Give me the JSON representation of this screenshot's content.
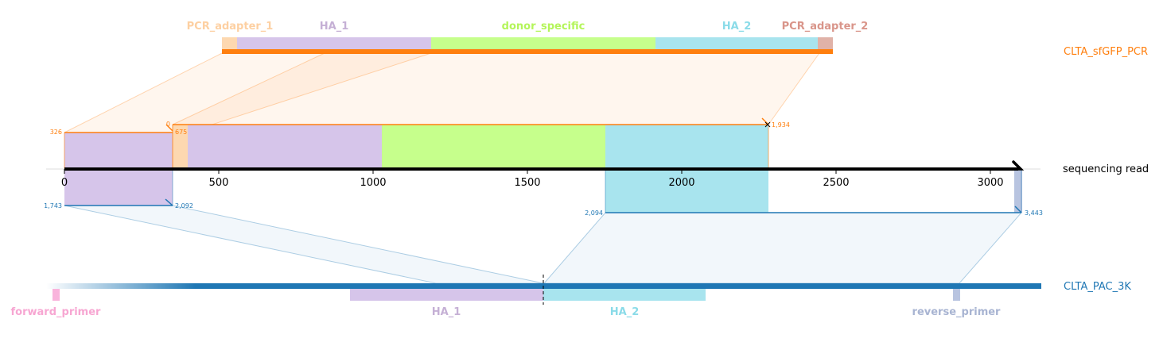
{
  "colors": {
    "pcr": "#ff7f0e",
    "pac": "#1f77b4",
    "pcr_adapter_1": "#fdd8b0",
    "ha_1": "#d6c5ea",
    "donor_specific": "#c6ff8c",
    "ha_2": "#a8e4ee",
    "pcr_adapter_2": "#e0b2a8",
    "forward_primer": "#f9b4dc",
    "reverse_primer": "#b8c4e0",
    "label_pcr_adapter_1": "#fdd0a2",
    "label_ha_1": "#c5b0d5",
    "label_donor_specific": "#b4f55a",
    "label_ha_2": "#8adbe8",
    "label_pcr_adapter_2": "#d9958a",
    "label_forward_primer": "#f7a6d2",
    "label_reverse_primer": "#a8b4d2"
  },
  "top_track": {
    "name": "CLTA_sfGFP_PCR",
    "features": [
      {
        "key": "pcr_adapter_1",
        "label": "PCR_adapter_1"
      },
      {
        "key": "ha_1",
        "label": "HA_1"
      },
      {
        "key": "donor_specific",
        "label": "donor_specific"
      },
      {
        "key": "ha_2",
        "label": "HA_2"
      },
      {
        "key": "pcr_adapter_2",
        "label": "PCR_adapter_2"
      }
    ]
  },
  "read_track": {
    "name": "sequencing read",
    "ticks": [
      "0",
      "500",
      "1000",
      "1500",
      "2000",
      "2500",
      "3000"
    ],
    "upper_alignment": {
      "read_start": "326",
      "target_start": "0",
      "read_end": "1,934",
      "target_inner": "675"
    },
    "lower_alignment": {
      "left_start": "1,743",
      "left_end": "2,092",
      "right_start": "2,094",
      "right_end": "3,443"
    }
  },
  "bottom_track": {
    "name": "CLTA_PAC_3K",
    "features": [
      {
        "key": "forward_primer",
        "label": "forward_primer"
      },
      {
        "key": "ha_1",
        "label": "HA_1"
      },
      {
        "key": "ha_2",
        "label": "HA_2"
      },
      {
        "key": "reverse_primer",
        "label": "reverse_primer"
      }
    ]
  }
}
